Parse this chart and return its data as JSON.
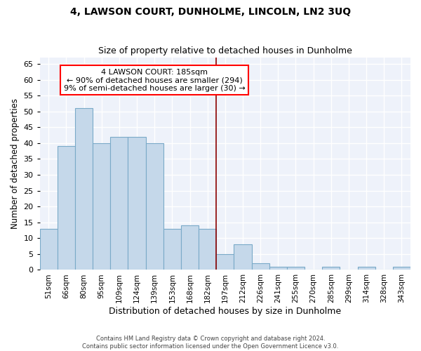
{
  "title": "4, LAWSON COURT, DUNHOLME, LINCOLN, LN2 3UQ",
  "subtitle": "Size of property relative to detached houses in Dunholme",
  "xlabel": "Distribution of detached houses by size in Dunholme",
  "ylabel": "Number of detached properties",
  "bar_color": "#c5d8ea",
  "bar_edge_color": "#7aaac8",
  "background_color": "#eef2fa",
  "grid_color": "#ffffff",
  "categories": [
    "51sqm",
    "66sqm",
    "80sqm",
    "95sqm",
    "109sqm",
    "124sqm",
    "139sqm",
    "153sqm",
    "168sqm",
    "182sqm",
    "197sqm",
    "212sqm",
    "226sqm",
    "241sqm",
    "255sqm",
    "270sqm",
    "285sqm",
    "299sqm",
    "314sqm",
    "328sqm",
    "343sqm"
  ],
  "values": [
    13,
    39,
    51,
    40,
    42,
    42,
    40,
    13,
    14,
    13,
    5,
    8,
    2,
    1,
    1,
    0,
    1,
    0,
    1,
    0,
    1
  ],
  "ylim": [
    0,
    67
  ],
  "yticks": [
    0,
    5,
    10,
    15,
    20,
    25,
    30,
    35,
    40,
    45,
    50,
    55,
    60,
    65
  ],
  "property_label": "4 LAWSON COURT: 185sqm",
  "annotation_line1": "← 90% of detached houses are smaller (294)",
  "annotation_line2": "9% of semi-detached houses are larger (30) →",
  "vline_bar_index": 9,
  "footer1": "Contains HM Land Registry data © Crown copyright and database right 2024.",
  "footer2": "Contains public sector information licensed under the Open Government Licence v3.0."
}
